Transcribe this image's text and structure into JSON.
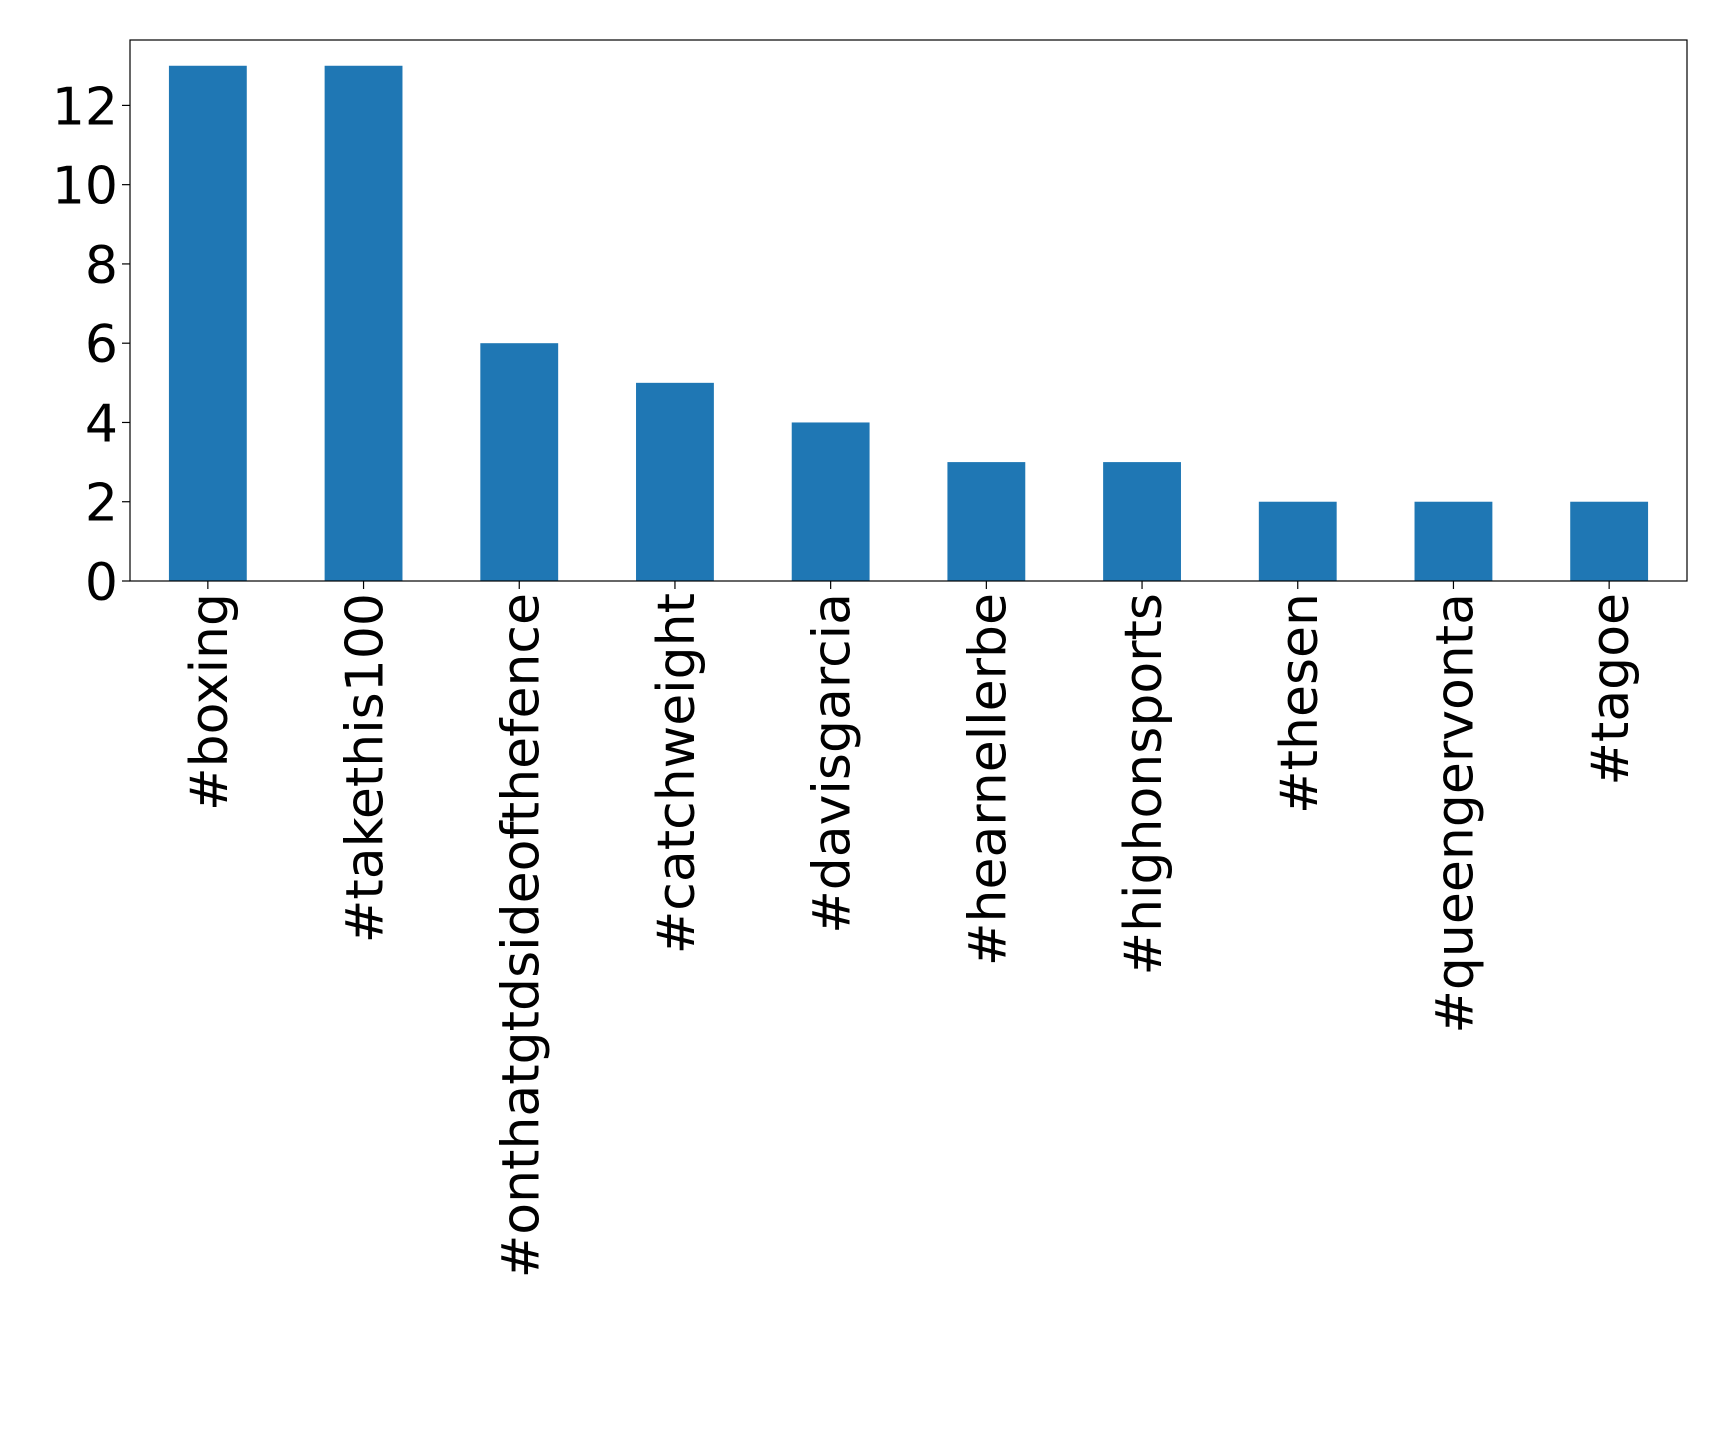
{
  "chart_data": {
    "type": "bar",
    "categories": [
      "#boxing",
      "#takethis100",
      "#onthatgtdsideofthefence",
      "#catchweight",
      "#davisgarcia",
      "#hearnellerbe",
      "#highonsports",
      "#thesen",
      "#queengervonta",
      "#tagoe"
    ],
    "values": [
      13,
      13,
      6,
      5,
      4,
      3,
      3,
      2,
      2,
      2
    ],
    "color": "#1f77b4",
    "ylim": [
      0,
      13.65
    ],
    "yticks": [
      0,
      2,
      4,
      6,
      8,
      10,
      12
    ],
    "grid": false
  }
}
